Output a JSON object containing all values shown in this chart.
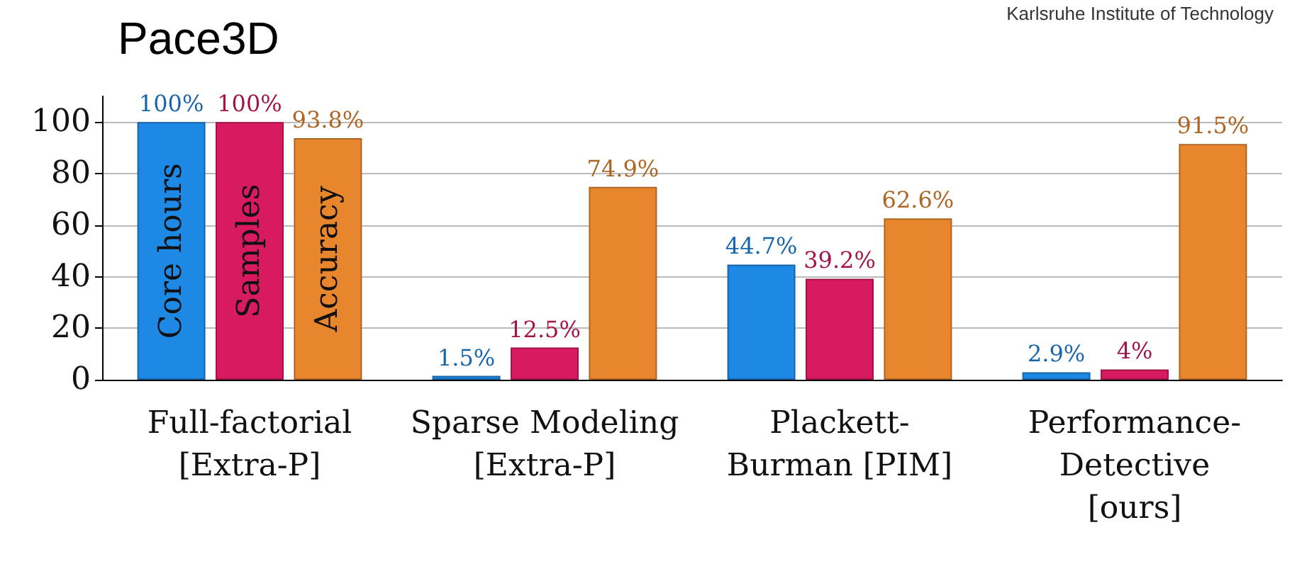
{
  "chart_data": {
    "type": "bar",
    "title": "Pace3D",
    "annotations": [
      "Karlsruhe Institute of Technology"
    ],
    "categories": [
      "Full-factorial\n[Extra-P]",
      "Sparse Modeling\n[Extra-P]",
      "Plackett-\nBurman [PIM]",
      "Performance-\nDetective\n[ours]"
    ],
    "series": [
      {
        "name": "Core hours",
        "color": "#1e88e5",
        "values": [
          100,
          1.5,
          44.7,
          2.9
        ],
        "value_labels": [
          "100%",
          "1.5%",
          "44.7%",
          "2.9%"
        ]
      },
      {
        "name": "Samples",
        "color": "#d81b60",
        "values": [
          100,
          12.5,
          39.2,
          4
        ],
        "value_labels": [
          "100%",
          "12.5%",
          "39.2%",
          "4%"
        ]
      },
      {
        "name": "Accuracy",
        "color": "#e8862e",
        "values": [
          93.8,
          74.9,
          62.6,
          91.5
        ],
        "value_labels": [
          "93.8%",
          "74.9%",
          "62.6%",
          "91.5%"
        ]
      }
    ],
    "ylim": [
      0,
      110
    ],
    "yticks": [
      0,
      20,
      40,
      60,
      80,
      100
    ],
    "grid": "y",
    "legend": false
  }
}
